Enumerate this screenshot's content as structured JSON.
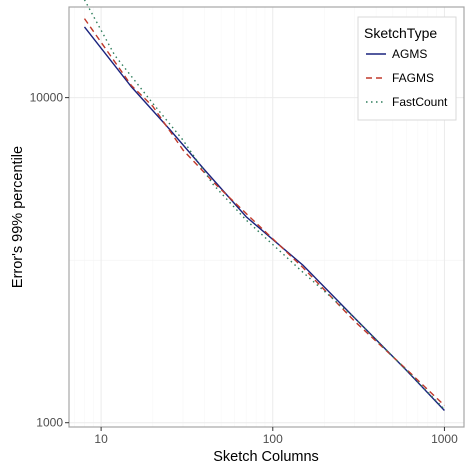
{
  "chart_data": {
    "type": "line",
    "title": "",
    "xlabel": "Sketch Columns",
    "ylabel": "Error's 99% percentile",
    "xscale": "log10",
    "yscale": "log10",
    "xlim": [
      6.5,
      1300
    ],
    "ylim": [
      970,
      19000
    ],
    "xticks": [
      {
        "value": 10,
        "label": "10"
      },
      {
        "value": 100,
        "label": "100"
      },
      {
        "value": 1000,
        "label": "1000"
      }
    ],
    "yticks": [
      {
        "value": 1000,
        "label": "1000"
      },
      {
        "value": 10000,
        "label": "10000"
      }
    ],
    "grid": true,
    "legend": {
      "title": "SketchType",
      "position": "top-right"
    },
    "series": [
      {
        "name": "AGMS",
        "color": "#1a237e",
        "dash": "solid",
        "points": [
          [
            8,
            16500
          ],
          [
            15,
            10800
          ],
          [
            25,
            8000
          ],
          [
            40,
            6000
          ],
          [
            70,
            4300
          ],
          [
            150,
            3050
          ],
          [
            300,
            2100
          ],
          [
            600,
            1450
          ],
          [
            1000,
            1090
          ]
        ]
      },
      {
        "name": "FAGMS",
        "color": "#c0392b",
        "dash": "dashed",
        "points": [
          [
            8,
            17500
          ],
          [
            15,
            10900
          ],
          [
            20,
            9400
          ],
          [
            30,
            6900
          ],
          [
            45,
            5500
          ],
          [
            70,
            4400
          ],
          [
            150,
            3000
          ],
          [
            300,
            2050
          ],
          [
            600,
            1460
          ],
          [
            1000,
            1130
          ]
        ]
      },
      {
        "name": "FastCount",
        "color": "#2e7d5b",
        "dash": "dotted",
        "points": [
          [
            8,
            20000
          ],
          [
            12,
            13500
          ],
          [
            20,
            9600
          ],
          [
            30,
            7400
          ],
          [
            45,
            5400
          ],
          [
            70,
            4200
          ],
          [
            150,
            2900
          ],
          [
            300,
            2100
          ],
          [
            600,
            1450
          ],
          [
            1000,
            1100
          ]
        ]
      }
    ]
  }
}
